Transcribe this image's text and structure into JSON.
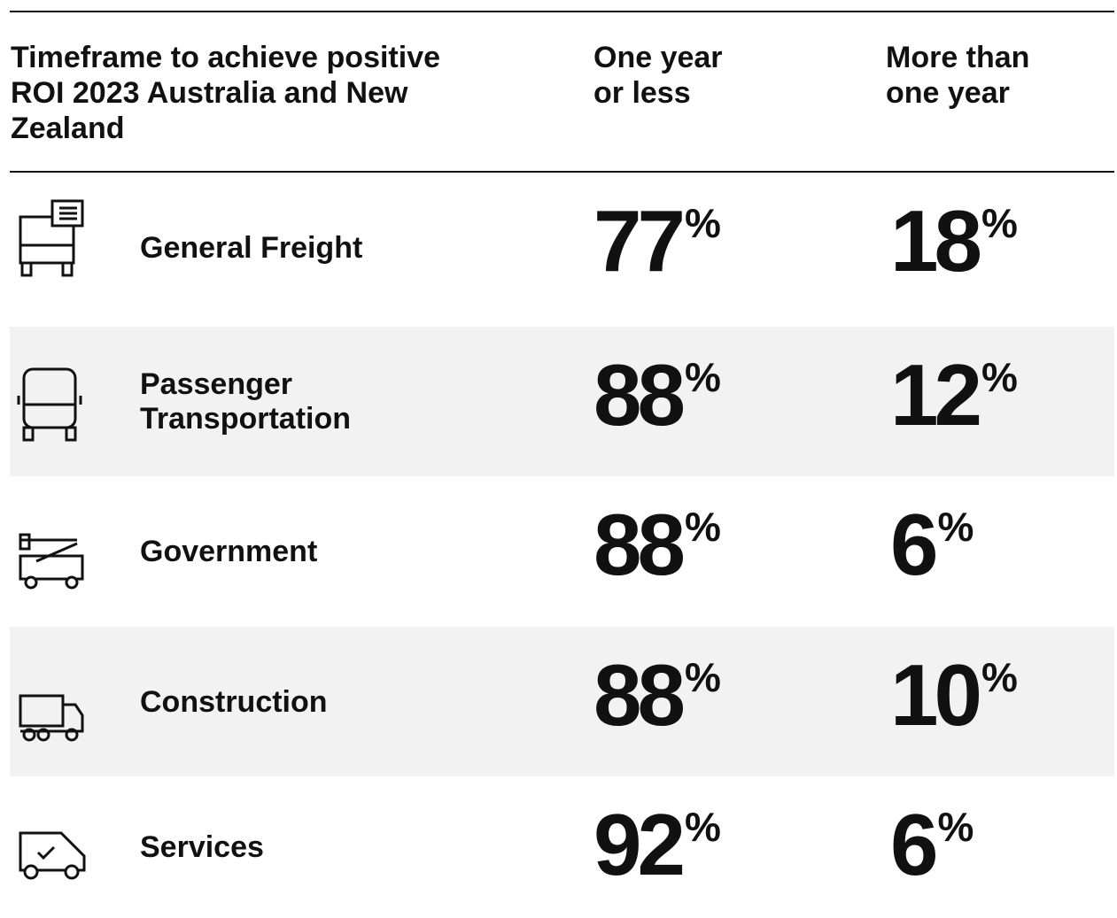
{
  "header": {
    "title": "Timeframe to achieve positive ROI 2023 Australia and New Zealand",
    "columns": [
      "One year or less",
      "More than one year"
    ]
  },
  "rows": [
    {
      "label": "General Freight",
      "values": [
        {
          "number": 77,
          "unit": "%"
        },
        {
          "number": 18,
          "unit": "%"
        }
      ]
    },
    {
      "label": "Passenger Transportation",
      "values": [
        {
          "number": 88,
          "unit": "%"
        },
        {
          "number": 12,
          "unit": "%"
        }
      ]
    },
    {
      "label": "Government",
      "values": [
        {
          "number": 88,
          "unit": "%"
        },
        {
          "number": 6,
          "unit": "%"
        }
      ]
    },
    {
      "label": "Construction",
      "values": [
        {
          "number": 88,
          "unit": "%"
        },
        {
          "number": 10,
          "unit": "%"
        }
      ]
    },
    {
      "label": "Services",
      "values": [
        {
          "number": 92,
          "unit": "%"
        },
        {
          "number": 6,
          "unit": "%"
        }
      ]
    }
  ]
}
